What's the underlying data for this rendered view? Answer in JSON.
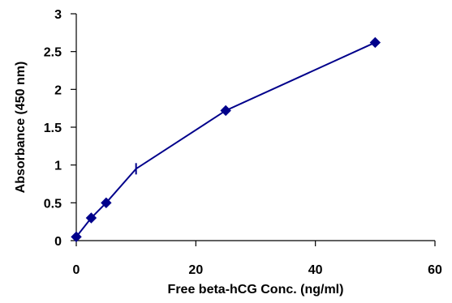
{
  "chart_data": {
    "type": "line",
    "title": "",
    "xlabel": "Free beta-hCG Conc.  (ng/ml)",
    "ylabel": "Absorbance (450 nm)",
    "xlim": [
      0,
      60
    ],
    "ylim": [
      0,
      3
    ],
    "x_ticks": [
      0,
      20,
      40,
      60
    ],
    "y_ticks": [
      0,
      0.5,
      1,
      1.5,
      2,
      2.5,
      3
    ],
    "x_tick_labels": [
      "0",
      "20",
      "40",
      "60"
    ],
    "y_tick_labels": [
      "0",
      "0.5",
      "1",
      "1.5",
      "2",
      "2.5",
      "3"
    ],
    "grid": false,
    "legend": "none",
    "series_color": "#00008B",
    "series": [
      {
        "points": [
          {
            "x": 0,
            "y": 0.05,
            "marker": "diamond"
          },
          {
            "x": 2.5,
            "y": 0.3,
            "marker": "diamond"
          },
          {
            "x": 5,
            "y": 0.5,
            "marker": "diamond"
          },
          {
            "x": 10,
            "y": 0.95,
            "marker": "vertical-dash"
          },
          {
            "x": 25,
            "y": 1.72,
            "marker": "diamond"
          },
          {
            "x": 50,
            "y": 2.62,
            "marker": "diamond"
          }
        ]
      }
    ]
  }
}
